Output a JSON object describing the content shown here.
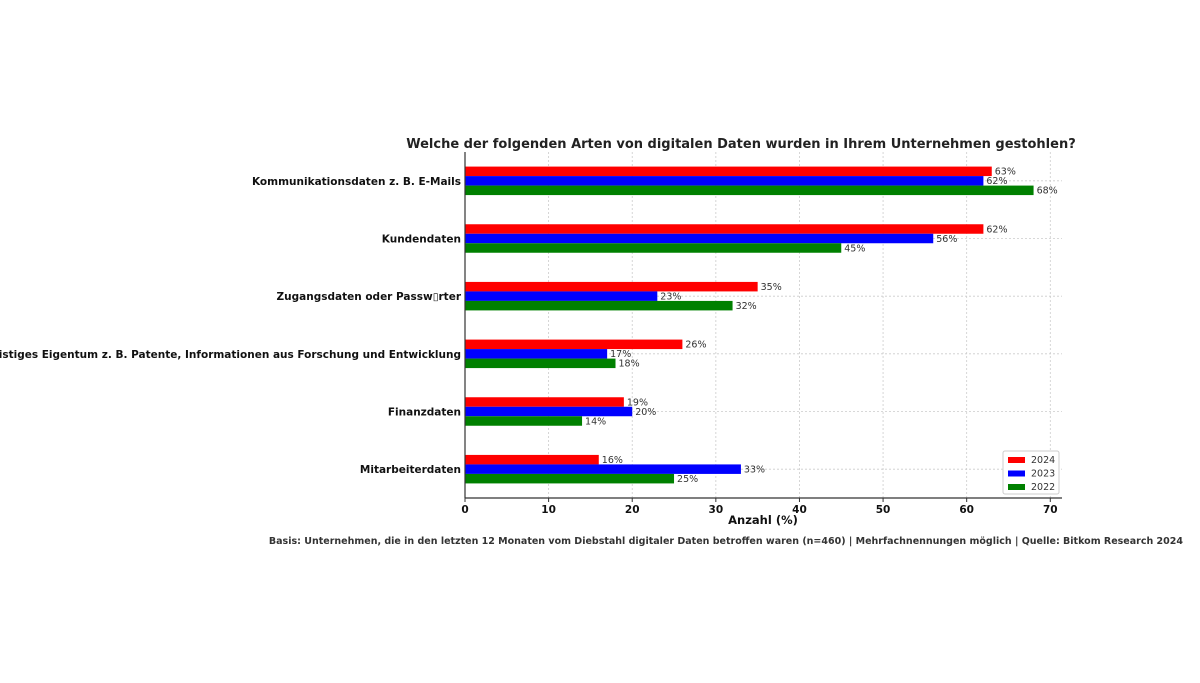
{
  "chart_data": {
    "type": "bar",
    "orientation": "horizontal",
    "title": "Welche der folgenden Arten von digitalen Daten wurden in Ihrem Unternehmen gestohlen?",
    "xlabel": "Anzahl (%)",
    "ylabel": "",
    "xlim": [
      0,
      71.4
    ],
    "xticks": [
      "0",
      "10",
      "20",
      "30",
      "40",
      "50",
      "60",
      "70"
    ],
    "grid": true,
    "legend_position": "bottom-right",
    "categories": [
      "Kommunikationsdaten z. B. E-Mails",
      "Kundendaten",
      "Zugangsdaten oder Passw▯rter",
      "Geistiges Eigentum z. B. Patente, Informationen aus Forschung und Entwicklung",
      "Finanzdaten",
      "Mitarbeiterdaten"
    ],
    "series": [
      {
        "name": "2024",
        "color": "#ff0000",
        "values": [
          63,
          62,
          35,
          26,
          19,
          16
        ],
        "labels": [
          "63%",
          "62%",
          "35%",
          "26%",
          "19%",
          "16%"
        ]
      },
      {
        "name": "2023",
        "color": "#0000ff",
        "values": [
          62,
          56,
          23,
          17,
          20,
          33
        ],
        "labels": [
          "62%",
          "56%",
          "23%",
          "17%",
          "20%",
          "33%"
        ]
      },
      {
        "name": "2022",
        "color": "#008000",
        "values": [
          68,
          45,
          32,
          18,
          14,
          25
        ],
        "labels": [
          "68%",
          "45%",
          "32%",
          "18%",
          "14%",
          "25%"
        ]
      }
    ],
    "footnote": "Basis: Unternehmen, die in den letzten 12 Monaten vom Diebstahl digitaler Daten betroffen waren (n=460) | Mehrfachnennungen möglich | Quelle: Bitkom Research 2024"
  }
}
